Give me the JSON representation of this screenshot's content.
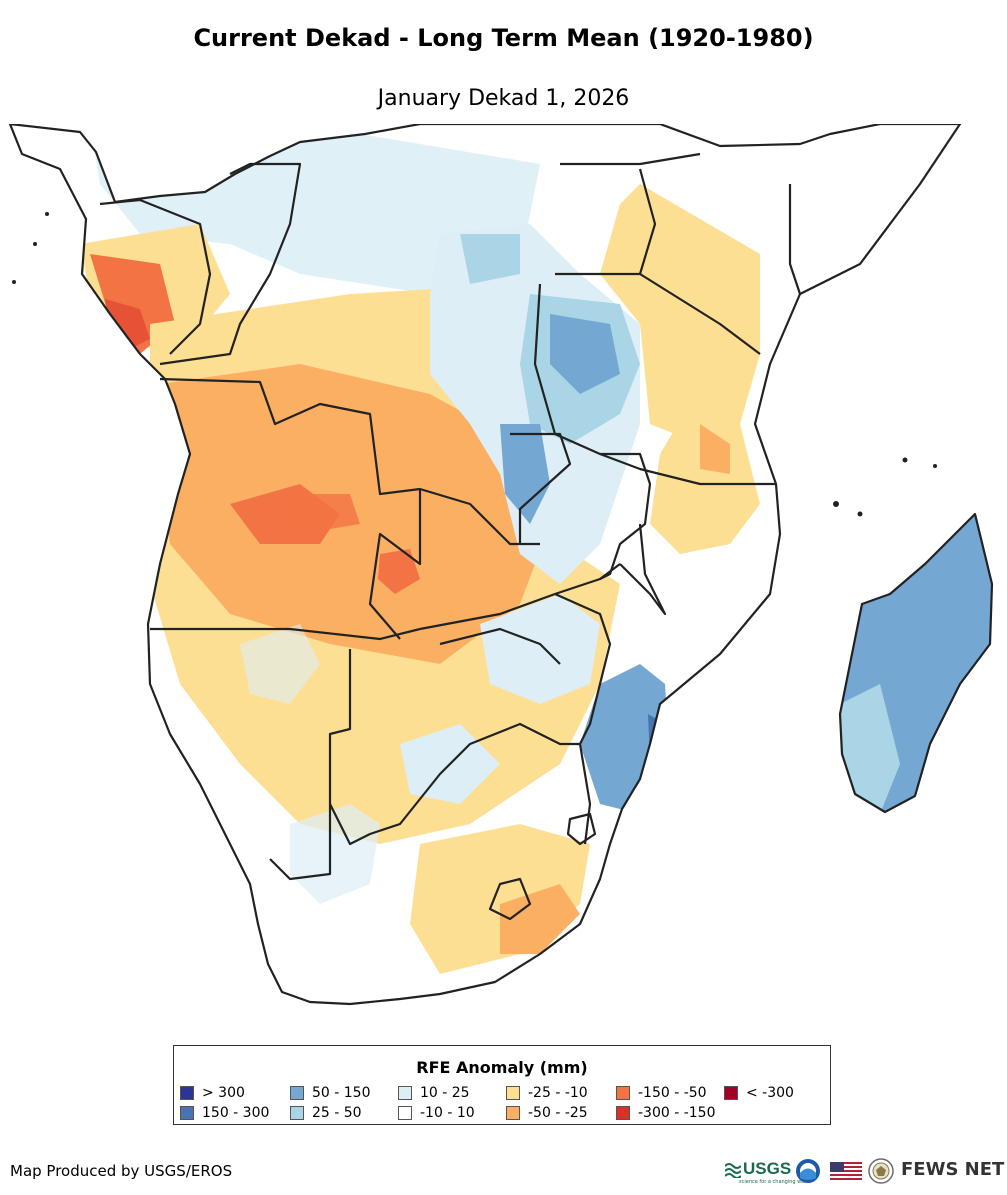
{
  "header": {
    "title": "Current Dekad - Long Term Mean (1920-1980)",
    "subtitle": "January Dekad 1, 2026"
  },
  "legend": {
    "title": "RFE Anomaly (mm)",
    "items": [
      {
        "label": "> 300",
        "color": "#2c3495"
      },
      {
        "label": "150 - 300",
        "color": "#4a73b2"
      },
      {
        "label": "50 - 150",
        "color": "#74a8d3"
      },
      {
        "label": "25 - 50",
        "color": "#a9d5e6"
      },
      {
        "label": "10 - 25",
        "color": "#ddeef6"
      },
      {
        "label": "-10 - 10",
        "color": "#ffffff"
      },
      {
        "label": "-25 - -10",
        "color": "#fddf93"
      },
      {
        "label": "-50 - -25",
        "color": "#fbaf63"
      },
      {
        "label": "-150 - -50",
        "color": "#f27344"
      },
      {
        "label": "-300 - -150",
        "color": "#d93128"
      },
      {
        "label": "< -300",
        "color": "#a40027"
      }
    ]
  },
  "footer": {
    "credit": "Map Produced by USGS/EROS",
    "usgs": "USGS",
    "usgs_tagline": "science for a changing world",
    "fews": "FEWS NET"
  }
}
